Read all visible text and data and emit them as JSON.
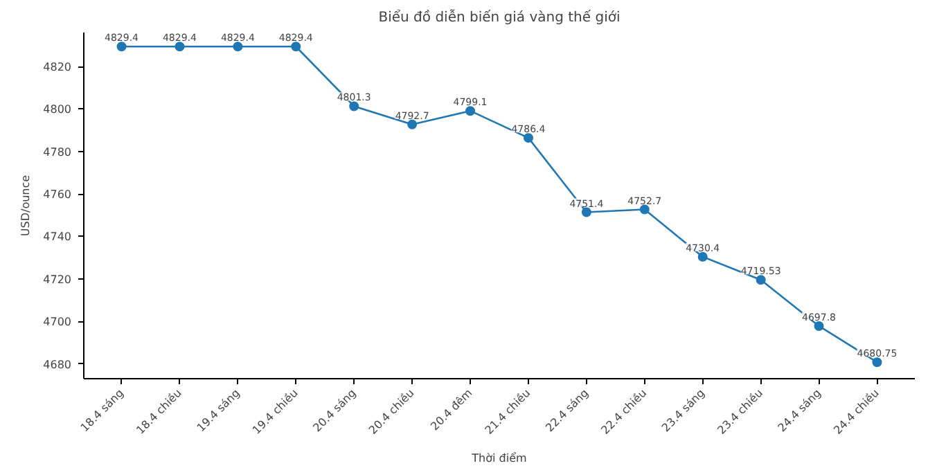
{
  "chart_data": {
    "type": "line",
    "title": "Biểu đồ diễn biến giá vàng thế giới",
    "xlabel": "Thời điểm",
    "ylabel": "USD/ounce",
    "categories": [
      "18.4 sáng",
      "18.4 chiều",
      "19.4 sáng",
      "19.4 chiều",
      "20.4 sáng",
      "20.4 chiều",
      "20.4 đêm",
      "21.4 chiều",
      "22.4 sáng",
      "22.4 chiều",
      "23.4 sáng",
      "23.4 chiều",
      "24.4 sáng",
      "24.4 chiều"
    ],
    "series": [
      {
        "color": "#1f77b4",
        "values": [
          4829.4,
          4829.4,
          4829.4,
          4829.4,
          4801.3,
          4792.7,
          4799.1,
          4786.4,
          4751.4,
          4752.7,
          4730.4,
          4719.53,
          4697.8,
          4680.75
        ]
      }
    ],
    "ylim": [
      4673,
      4836
    ],
    "yticks": [
      4680,
      4700,
      4720,
      4740,
      4760,
      4780,
      4800,
      4820
    ],
    "data_labels": true,
    "marker": "circle",
    "line_style": "solid",
    "grid": false
  }
}
